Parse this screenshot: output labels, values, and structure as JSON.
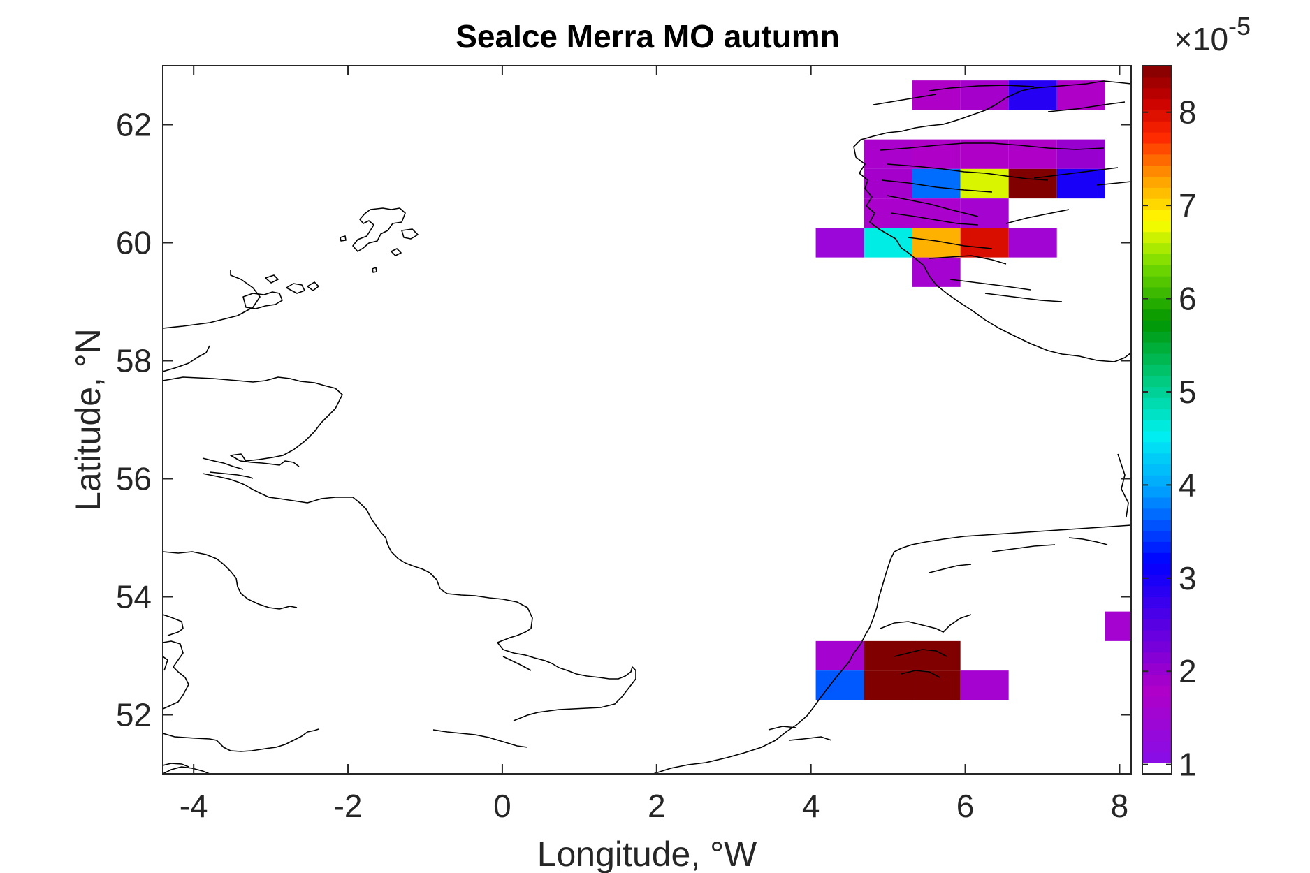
{
  "chart_data": {
    "type": "heatmap",
    "title": "SeaIce Merra MO autumn",
    "xlabel": "Longitude, °W",
    "ylabel": "Latitude, °N",
    "xlim": [
      -4.4,
      8.15
    ],
    "ylim": [
      51,
      63
    ],
    "xticks": [
      -4,
      -2,
      0,
      2,
      4,
      6,
      8
    ],
    "yticks": [
      52,
      54,
      56,
      58,
      60,
      62
    ],
    "colorbar": {
      "min": 0.9,
      "max": 8.5,
      "ticks": [
        1,
        2,
        3,
        4,
        5,
        6,
        7,
        8
      ],
      "exponent_label": "×10",
      "exponent": "-5"
    },
    "cell_size": {
      "dlon": 0.625,
      "dlat": 0.5
    },
    "cells": [
      {
        "lon": 5.625,
        "lat": 62.5,
        "value": 1.8
      },
      {
        "lon": 6.25,
        "lat": 62.5,
        "value": 1.9
      },
      {
        "lon": 6.875,
        "lat": 62.5,
        "value": 2.9
      },
      {
        "lon": 7.5,
        "lat": 62.5,
        "value": 1.8
      },
      {
        "lon": 5.0,
        "lat": 61.5,
        "value": 1.7
      },
      {
        "lon": 5.625,
        "lat": 61.5,
        "value": 1.8
      },
      {
        "lon": 6.25,
        "lat": 61.5,
        "value": 1.8
      },
      {
        "lon": 6.875,
        "lat": 61.5,
        "value": 1.8
      },
      {
        "lon": 7.5,
        "lat": 61.5,
        "value": 2.0
      },
      {
        "lon": 5.0,
        "lat": 61.0,
        "value": 1.9
      },
      {
        "lon": 5.625,
        "lat": 61.0,
        "value": 3.7
      },
      {
        "lon": 6.25,
        "lat": 61.0,
        "value": 6.7
      },
      {
        "lon": 6.875,
        "lat": 61.0,
        "value": 8.5
      },
      {
        "lon": 7.5,
        "lat": 61.0,
        "value": 3.0
      },
      {
        "lon": 5.0,
        "lat": 60.5,
        "value": 1.7
      },
      {
        "lon": 5.625,
        "lat": 60.5,
        "value": 1.7
      },
      {
        "lon": 6.25,
        "lat": 60.5,
        "value": 1.6
      },
      {
        "lon": 4.375,
        "lat": 60.0,
        "value": 1.4
      },
      {
        "lon": 5.0,
        "lat": 60.0,
        "value": 4.6
      },
      {
        "lon": 5.625,
        "lat": 60.0,
        "value": 7.2
      },
      {
        "lon": 6.25,
        "lat": 60.0,
        "value": 8.0
      },
      {
        "lon": 6.875,
        "lat": 60.0,
        "value": 1.5
      },
      {
        "lon": 5.625,
        "lat": 59.5,
        "value": 1.6
      },
      {
        "lon": 8.125,
        "lat": 53.5,
        "value": 1.6
      },
      {
        "lon": 4.375,
        "lat": 53.0,
        "value": 1.6
      },
      {
        "lon": 5.0,
        "lat": 53.0,
        "value": 8.5
      },
      {
        "lon": 5.625,
        "lat": 53.0,
        "value": 8.5
      },
      {
        "lon": 4.375,
        "lat": 52.5,
        "value": 3.6
      },
      {
        "lon": 5.0,
        "lat": 52.5,
        "value": 8.5
      },
      {
        "lon": 5.625,
        "lat": 52.5,
        "value": 8.5
      },
      {
        "lon": 6.25,
        "lat": 52.5,
        "value": 1.6
      }
    ],
    "grid": false,
    "coastlines": true
  }
}
